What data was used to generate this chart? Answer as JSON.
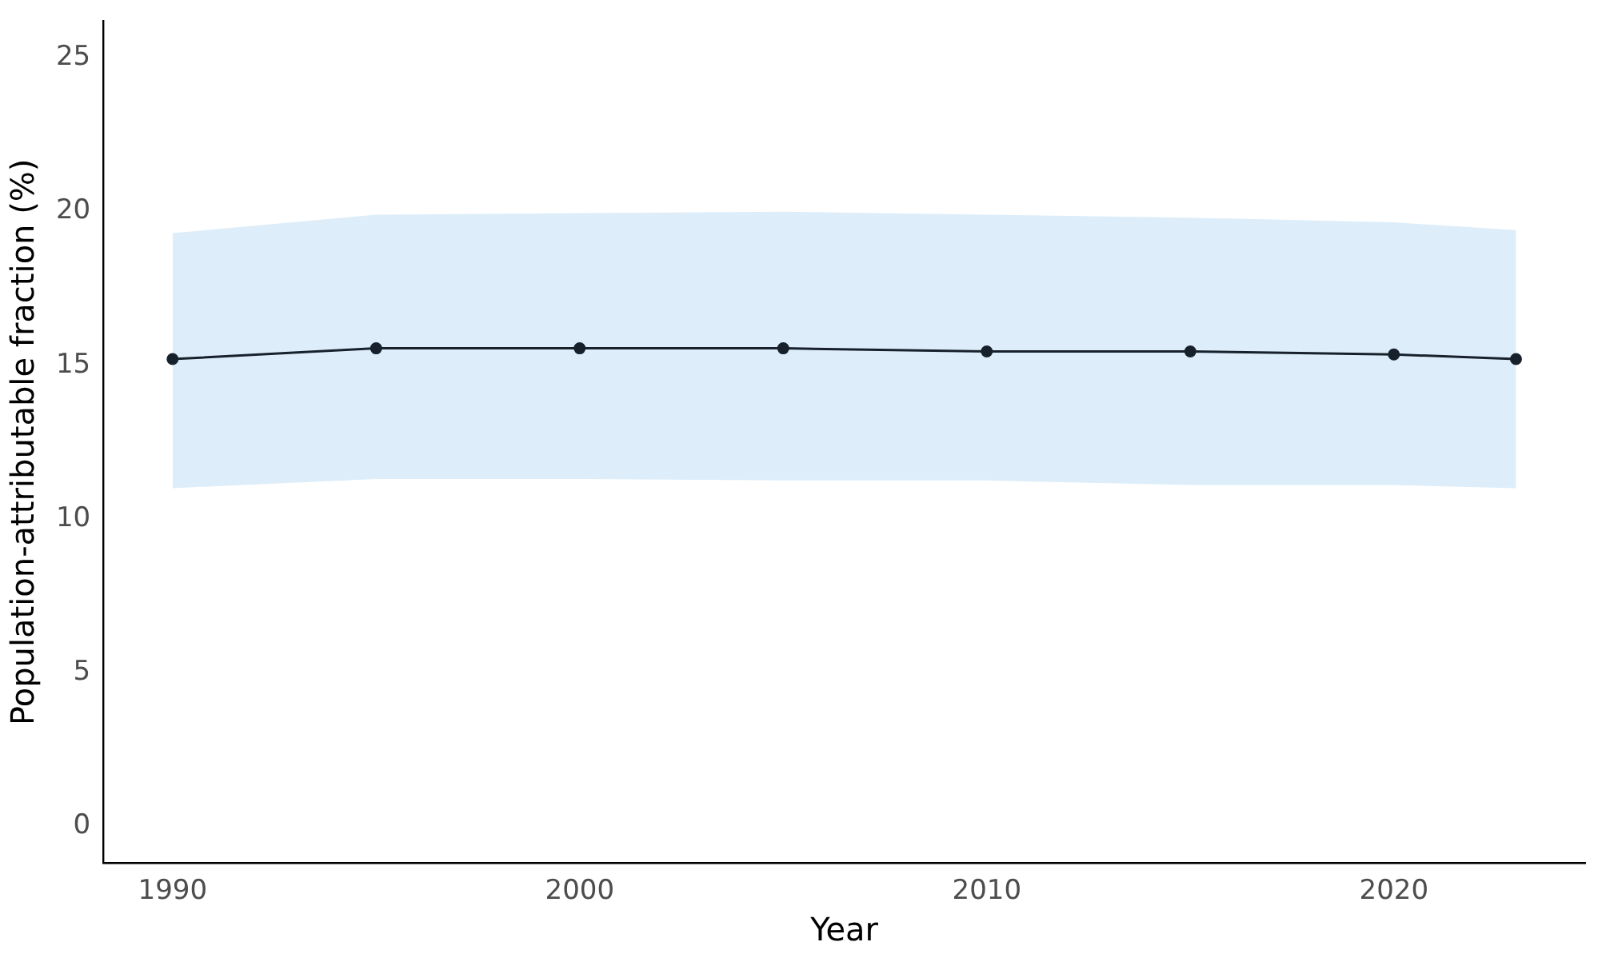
{
  "chart_data": {
    "type": "line",
    "xlabel": "Year",
    "ylabel": "Population-attributable fraction (%)",
    "x": [
      1990,
      1995,
      2000,
      2005,
      2010,
      2015,
      2020,
      2023
    ],
    "series": [
      {
        "color": "#17212b",
        "values": [
          15.2,
          15.55,
          15.55,
          15.55,
          15.45,
          15.45,
          15.35,
          15.2
        ],
        "lower": [
          11.0,
          11.3,
          11.3,
          11.25,
          11.25,
          11.1,
          11.1,
          11.0
        ],
        "upper": [
          19.3,
          19.9,
          19.95,
          20.0,
          19.9,
          19.8,
          19.65,
          19.4
        ]
      }
    ],
    "xlim": [
      1988.3,
      2024.7
    ],
    "xticks": [
      1990,
      2000,
      2010,
      2020
    ],
    "ylim": [
      -1.2,
      26.2
    ],
    "yticks": [
      0,
      5,
      10,
      15,
      20,
      25
    ],
    "grid": false,
    "legend": false,
    "marker": "circle",
    "line_style": "solid"
  }
}
